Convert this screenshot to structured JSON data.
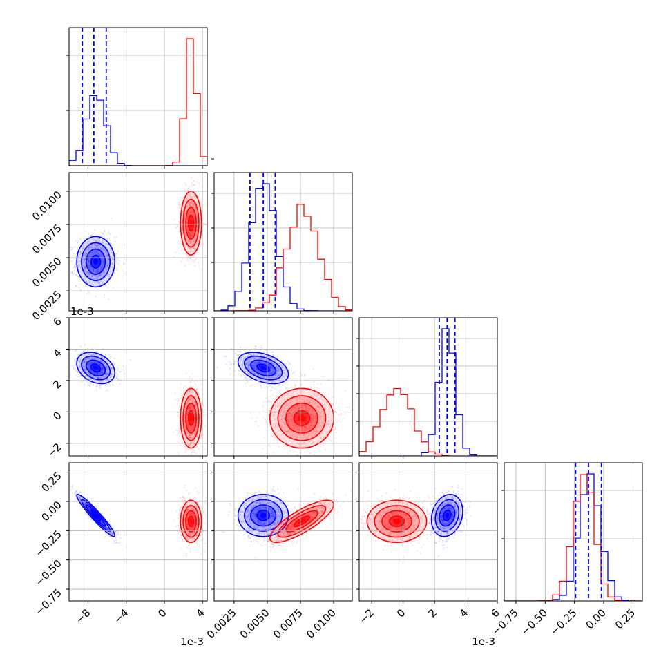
{
  "chart_data": {
    "type": "corner",
    "grid": true,
    "offset_text": "1e-3",
    "series_colors": {
      "blue": "#0000ff",
      "red": "#ff0000"
    },
    "parameters": [
      {
        "index": 0,
        "range": [
          -10,
          4.5
        ],
        "ticks": [
          -8,
          -4,
          0,
          4
        ],
        "offset": "1e-3"
      },
      {
        "index": 1,
        "range": [
          0.001,
          0.0114
        ],
        "ticks": [
          0.0025,
          0.005,
          0.0075,
          0.01
        ],
        "tick_labels": [
          "0.0025",
          "0.0050",
          "0.0075",
          "0.0100"
        ]
      },
      {
        "index": 2,
        "range": [
          -2.8,
          6
        ],
        "ticks": [
          -2,
          0,
          2,
          4,
          6
        ],
        "offset": "1e-3"
      },
      {
        "index": 3,
        "range": [
          -0.85,
          0.33
        ],
        "ticks": [
          -0.75,
          -0.5,
          -0.25,
          0,
          0.25
        ],
        "tick_labels": [
          "−0.75",
          "−0.50",
          "−0.25",
          "0.00",
          "0.25"
        ]
      }
    ],
    "blue": {
      "means": [
        -7.2,
        0.0047,
        2.8,
        -0.12
      ],
      "sds": [
        1.0,
        0.00095,
        0.5,
        0.09
      ],
      "corr": {
        "0-1": 0.0,
        "0-2": -0.3,
        "0-3": -0.95,
        "1-2": -0.4,
        "1-3": 0.0,
        "2-3": 0.2
      },
      "quantiles": [
        [
          -8.6,
          -7.4,
          -6.1
        ],
        [
          0.0037,
          0.0047,
          0.0056
        ],
        [
          2.3,
          2.8,
          3.3
        ],
        [
          -0.24,
          -0.13,
          -0.02
        ]
      ]
    },
    "red": {
      "means": [
        2.8,
        0.0076,
        -0.4,
        -0.17
      ],
      "sds": [
        0.55,
        0.0012,
        0.95,
        0.09
      ],
      "corr": {
        "0-1": 0.0,
        "0-2": 0.0,
        "0-3": 0.0,
        "1-2": 0.0,
        "1-3": 0.8,
        "2-3": 0.0
      },
      "quantiles": [
        [],
        [],
        [],
        []
      ]
    },
    "histogram_ticks": [
      [
        80,
        160
      ],
      [
        230,
        280,
        330,
        380
      ],
      [
        490,
        530,
        570,
        610
      ],
      [
        710,
        780
      ]
    ]
  }
}
